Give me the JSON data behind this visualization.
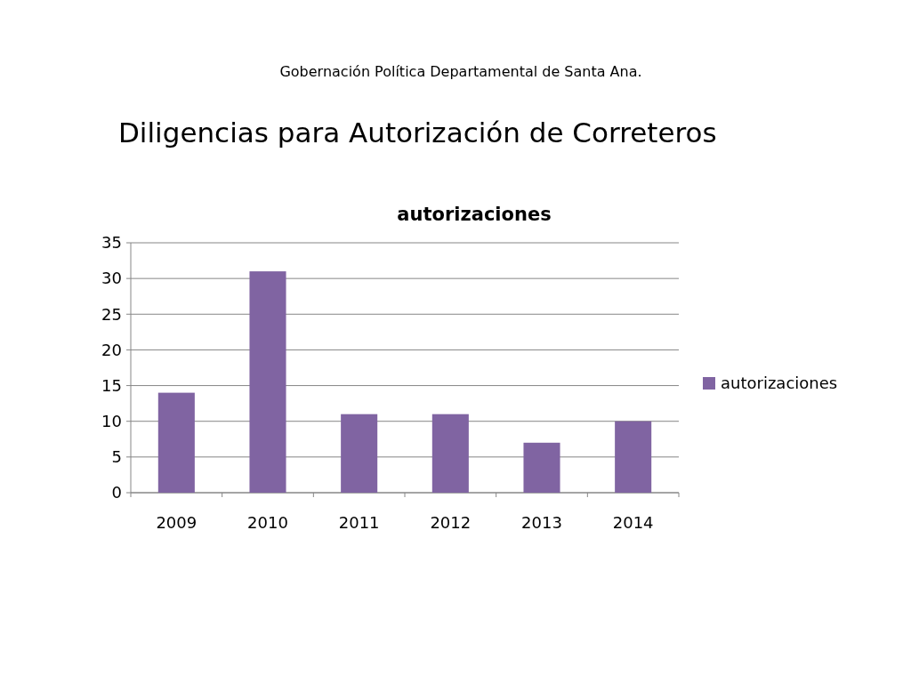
{
  "chart_data": {
    "type": "bar",
    "title": "Diligencias para Autorización de Correteros",
    "subtitle": "autorizaciones",
    "annotations": [
      "Gobernación Política Departamental de Santa Ana."
    ],
    "categories": [
      "2009",
      "2010",
      "2011",
      "2012",
      "2013",
      "2014"
    ],
    "series": [
      {
        "name": "autorizaciones",
        "color": "#8064a2",
        "values": [
          14,
          31,
          11,
          11,
          7,
          10
        ]
      }
    ],
    "ylim": [
      0,
      35
    ],
    "yticks": [
      0,
      5,
      10,
      15,
      20,
      25,
      30,
      35
    ],
    "grid": "y",
    "legend": "right"
  }
}
